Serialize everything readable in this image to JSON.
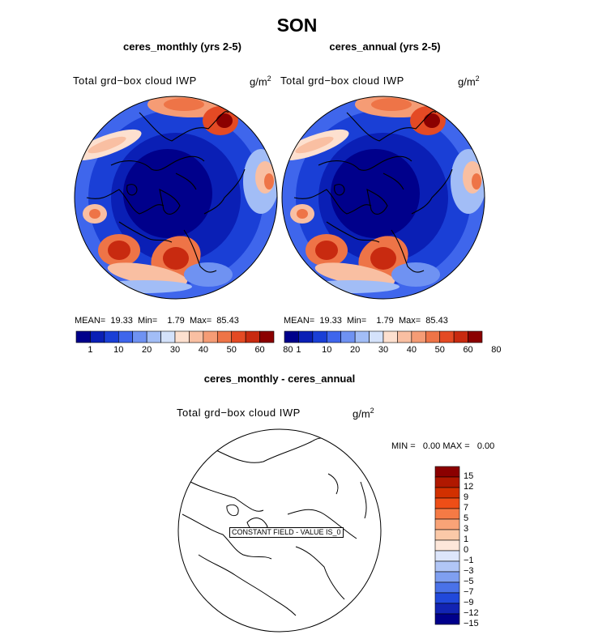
{
  "figure": {
    "season": "SON"
  },
  "panels": [
    {
      "title": "ceres_monthly (yrs 2-5)",
      "variable": "Total grd−box cloud IWP",
      "units": "g/m",
      "units_exp": "2",
      "mean_label": "MEAN=",
      "mean": "19.33",
      "min_label": "Min=",
      "min": "1.79",
      "max_label": "Max=",
      "max": "85.43"
    },
    {
      "title": "ceres_annual (yrs 2-5)",
      "variable": "Total grd−box cloud IWP",
      "units": "g/m",
      "units_exp": "2",
      "mean_label": "MEAN=",
      "mean": "19.33",
      "min_label": "Min=",
      "min": "1.79",
      "max_label": "Max=",
      "max": "85.43"
    }
  ],
  "colorbar": {
    "labels": [
      "1",
      "10",
      "20",
      "30",
      "40",
      "50",
      "60",
      "80"
    ],
    "colors": [
      "#00008b",
      "#0a1fb5",
      "#1a3fd6",
      "#3f66ec",
      "#6f92f2",
      "#a2bdf6",
      "#d4e2fb",
      "#fde0cf",
      "#f9bfa2",
      "#f59c75",
      "#ee7447",
      "#e44a24",
      "#c82a10",
      "#8b0000"
    ]
  },
  "diff": {
    "title": "ceres_monthly - ceres_annual",
    "variable": "Total grd−box cloud IWP",
    "units": "g/m",
    "units_exp": "2",
    "min_label": "MIN =",
    "min": "0.00",
    "max_label": "MAX =",
    "max": "0.00",
    "constant_label": "CONSTANT FIELD - VALUE IS_0",
    "levels": [
      "15",
      "12",
      "9",
      "7",
      "5",
      "3",
      "1",
      "0",
      "−1",
      "−3",
      "−5",
      "−7",
      "−9",
      "−12",
      "−15"
    ],
    "colors": [
      "#8b0000",
      "#b01800",
      "#d23000",
      "#ee4e17",
      "#f57a45",
      "#f9a377",
      "#fbc9a8",
      "#fde7da",
      "#dde6fb",
      "#b1c6f6",
      "#7f9ff0",
      "#4a72e8",
      "#2149db",
      "#1224b3",
      "#00008b"
    ]
  }
}
